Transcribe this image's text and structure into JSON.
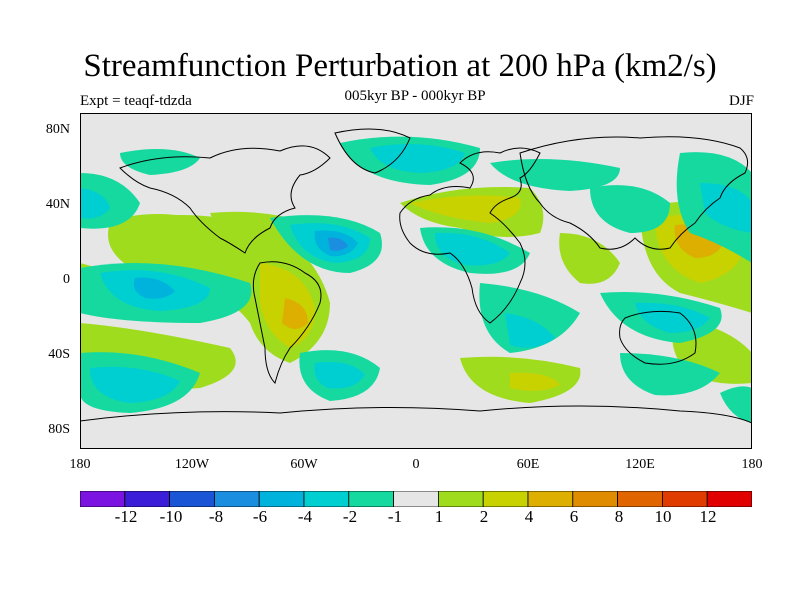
{
  "title": "Streamfunction Perturbation at 200 hPa (km2/s)",
  "subtitle": "005kyr BP - 000kyr BP",
  "left_label": "Expt = teaqf-tdzda",
  "right_label": "DJF",
  "y_ticks": [
    "80N",
    "40N",
    "0",
    "40S",
    "80S"
  ],
  "x_ticks": [
    "180",
    "120W",
    "60W",
    "0",
    "60E",
    "120E",
    "180"
  ],
  "colorbar": {
    "colors": [
      "#7b14e0",
      "#3a1ed8",
      "#1a55d6",
      "#1c8ee0",
      "#00b3dc",
      "#00cfd2",
      "#16d9a0",
      "#e6e6e6",
      "#a0dc1e",
      "#c8d200",
      "#dcaf00",
      "#e08c00",
      "#e06400",
      "#e03c00",
      "#e00000"
    ],
    "labels": [
      "-12",
      "-10",
      "-8",
      "-6",
      "-4",
      "-2",
      "-1",
      "1",
      "2",
      "4",
      "6",
      "8",
      "10",
      "12"
    ]
  },
  "map_colors": {
    "background": "#e6e6e6",
    "neg1": "#16d9a0",
    "neg2": "#00cfd2",
    "neg3": "#00b3dc",
    "neg4": "#1c8ee0",
    "pos1": "#a0dc1e",
    "pos2": "#c8d200",
    "pos3": "#dcaf00",
    "coast": "#000000"
  }
}
